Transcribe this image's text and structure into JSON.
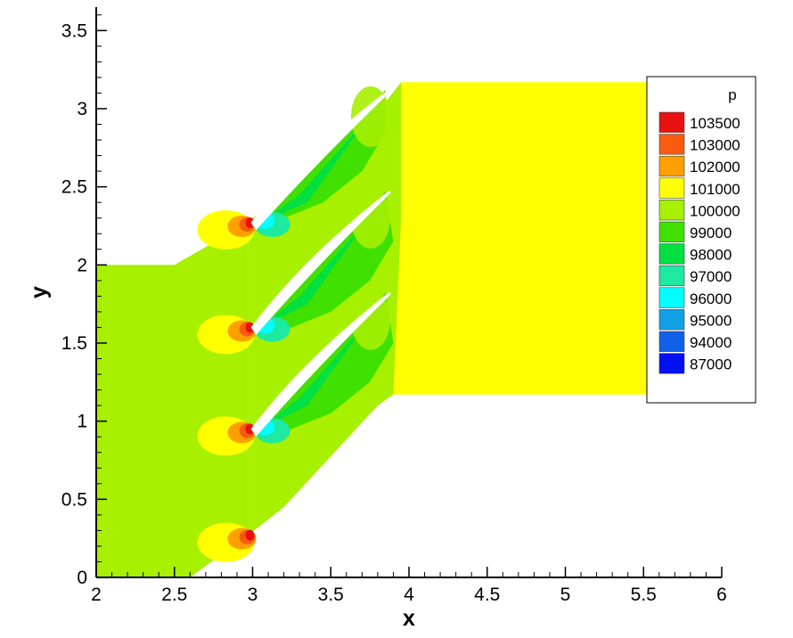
{
  "chart_data": {
    "type": "contour",
    "title": "",
    "xlabel": "x",
    "ylabel": "y",
    "xlim": [
      2,
      6
    ],
    "ylim": [
      0,
      3.65
    ],
    "x_ticks": [
      2,
      2.5,
      3,
      3.5,
      4,
      4.5,
      5,
      5.5,
      6
    ],
    "y_ticks": [
      0,
      0.5,
      1,
      1.5,
      2,
      2.5,
      3,
      3.5
    ],
    "x_tick_labels": [
      "2",
      "2.5",
      "3",
      "3.5",
      "4",
      "4.5",
      "5",
      "5.5",
      "6"
    ],
    "y_tick_labels": [
      "0",
      "0.5",
      "1",
      "1.5",
      "2",
      "2.5",
      "3",
      "3.5"
    ],
    "legend": {
      "title": "p",
      "position": "top-right",
      "levels": [
        {
          "label": "103500",
          "color": "#e81010"
        },
        {
          "label": "103000",
          "color": "#f85a10"
        },
        {
          "label": "102000",
          "color": "#ffa000"
        },
        {
          "label": "101000",
          "color": "#ffff00"
        },
        {
          "label": "100000",
          "color": "#a6f000"
        },
        {
          "label": "99000",
          "color": "#40e000"
        },
        {
          "label": "98000",
          "color": "#00e040"
        },
        {
          "label": "97000",
          "color": "#1de9a0"
        },
        {
          "label": "96000",
          "color": "#00ffff"
        },
        {
          "label": "95000",
          "color": "#10a0e8"
        },
        {
          "label": "94000",
          "color": "#1060e8"
        },
        {
          "label": "87000",
          "color": "#0010f0"
        }
      ]
    },
    "domain": {
      "inlet_region": [
        [
          2.0,
          0.0
        ],
        [
          2.0,
          2.0
        ],
        [
          2.5,
          2.0
        ],
        [
          2.97,
          2.27
        ],
        [
          2.97,
          0.27
        ],
        [
          2.6,
          0.0
        ]
      ],
      "passage_region": [
        [
          2.97,
          0.27
        ],
        [
          2.97,
          2.27
        ],
        [
          3.0,
          2.3
        ],
        [
          3.85,
          2.85
        ],
        [
          3.9,
          1.17
        ],
        [
          3.8,
          1.1
        ]
      ],
      "outlet_region": [
        [
          3.9,
          1.17
        ],
        [
          3.6,
          2.7
        ],
        [
          3.95,
          3.17
        ],
        [
          5.55,
          3.17
        ],
        [
          5.55,
          1.17
        ]
      ],
      "blades": [
        {
          "leading_edge": [
            3.0,
            0.95
          ],
          "trailing_edge": [
            3.88,
            1.82
          ]
        },
        {
          "leading_edge": [
            3.0,
            1.6
          ],
          "trailing_edge": [
            3.88,
            2.47
          ]
        },
        {
          "leading_edge": [
            3.0,
            2.27
          ],
          "trailing_edge": [
            3.88,
            3.12
          ]
        }
      ]
    }
  }
}
